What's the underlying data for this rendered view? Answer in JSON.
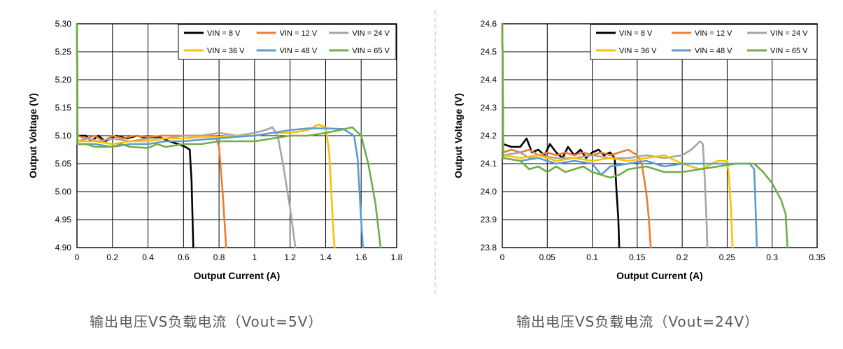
{
  "captions": [
    "输出电压VS负载电流（Vout=5V）",
    "输出电压VS负载电流（Vout=24V）"
  ],
  "chart_data": [
    {
      "type": "line",
      "title": "",
      "xlabel": "Output Current (A)",
      "ylabel": "Output Voltage (V)",
      "xlim": [
        0,
        1.8
      ],
      "ylim": [
        4.9,
        5.3
      ],
      "xticks": [
        "0",
        "0.2",
        "0.4",
        "0.6",
        "0.8",
        "1",
        "1.2",
        "1.4",
        "1.6",
        "1.8"
      ],
      "yticks": [
        "4.90",
        "4.95",
        "5.00",
        "5.05",
        "5.10",
        "5.15",
        "5.20",
        "5.25",
        "5.30"
      ],
      "grid": true,
      "legend_position": "top-right",
      "series": [
        {
          "name": "VIN = 8 V",
          "color": "#000000",
          "points": [
            [
              0,
              5.3
            ],
            [
              0.003,
              5.1
            ],
            [
              0.05,
              5.1
            ],
            [
              0.08,
              5.09
            ],
            [
              0.12,
              5.1
            ],
            [
              0.16,
              5.09
            ],
            [
              0.22,
              5.1
            ],
            [
              0.28,
              5.095
            ],
            [
              0.34,
              5.1
            ],
            [
              0.4,
              5.095
            ],
            [
              0.46,
              5.098
            ],
            [
              0.52,
              5.09
            ],
            [
              0.57,
              5.085
            ],
            [
              0.61,
              5.08
            ],
            [
              0.635,
              5.075
            ],
            [
              0.645,
              5.02
            ],
            [
              0.655,
              4.9
            ]
          ]
        },
        {
          "name": "VIN = 12 V",
          "color": "#ed7d31",
          "points": [
            [
              0,
              5.3
            ],
            [
              0.003,
              5.1
            ],
            [
              0.05,
              5.095
            ],
            [
              0.1,
              5.1
            ],
            [
              0.15,
              5.09
            ],
            [
              0.2,
              5.1
            ],
            [
              0.26,
              5.095
            ],
            [
              0.32,
              5.1
            ],
            [
              0.4,
              5.098
            ],
            [
              0.48,
              5.1
            ],
            [
              0.56,
              5.1
            ],
            [
              0.64,
              5.1
            ],
            [
              0.72,
              5.1
            ],
            [
              0.78,
              5.1
            ],
            [
              0.8,
              5.08
            ],
            [
              0.82,
              5.0
            ],
            [
              0.84,
              4.9
            ]
          ]
        },
        {
          "name": "VIN = 24 V",
          "color": "#a5a5a5",
          "points": [
            [
              0,
              5.3
            ],
            [
              0.003,
              5.09
            ],
            [
              0.06,
              5.095
            ],
            [
              0.12,
              5.09
            ],
            [
              0.2,
              5.095
            ],
            [
              0.3,
              5.09
            ],
            [
              0.4,
              5.095
            ],
            [
              0.5,
              5.095
            ],
            [
              0.6,
              5.1
            ],
            [
              0.7,
              5.1
            ],
            [
              0.8,
              5.105
            ],
            [
              0.9,
              5.1
            ],
            [
              1.0,
              5.105
            ],
            [
              1.06,
              5.11
            ],
            [
              1.1,
              5.115
            ],
            [
              1.13,
              5.1
            ],
            [
              1.16,
              5.05
            ],
            [
              1.2,
              4.97
            ],
            [
              1.23,
              4.9
            ]
          ]
        },
        {
          "name": "VIN = 36 V",
          "color": "#ffc000",
          "points": [
            [
              0,
              5.3
            ],
            [
              0.003,
              5.09
            ],
            [
              0.1,
              5.09
            ],
            [
              0.2,
              5.085
            ],
            [
              0.3,
              5.09
            ],
            [
              0.4,
              5.09
            ],
            [
              0.5,
              5.095
            ],
            [
              0.6,
              5.095
            ],
            [
              0.7,
              5.098
            ],
            [
              0.8,
              5.098
            ],
            [
              0.9,
              5.1
            ],
            [
              1.0,
              5.1
            ],
            [
              1.1,
              5.105
            ],
            [
              1.2,
              5.105
            ],
            [
              1.3,
              5.11
            ],
            [
              1.36,
              5.12
            ],
            [
              1.4,
              5.115
            ],
            [
              1.42,
              5.07
            ],
            [
              1.44,
              4.95
            ],
            [
              1.45,
              4.9
            ]
          ]
        },
        {
          "name": "VIN = 48 V",
          "color": "#5b9bd5",
          "points": [
            [
              0,
              5.3
            ],
            [
              0.003,
              5.085
            ],
            [
              0.1,
              5.085
            ],
            [
              0.2,
              5.08
            ],
            [
              0.3,
              5.085
            ],
            [
              0.4,
              5.085
            ],
            [
              0.5,
              5.09
            ],
            [
              0.6,
              5.09
            ],
            [
              0.7,
              5.093
            ],
            [
              0.8,
              5.095
            ],
            [
              0.9,
              5.098
            ],
            [
              1.0,
              5.1
            ],
            [
              1.1,
              5.105
            ],
            [
              1.2,
              5.11
            ],
            [
              1.3,
              5.113
            ],
            [
              1.4,
              5.113
            ],
            [
              1.5,
              5.112
            ],
            [
              1.56,
              5.1
            ],
            [
              1.58,
              5.06
            ],
            [
              1.6,
              4.95
            ],
            [
              1.61,
              4.9
            ]
          ]
        },
        {
          "name": "VIN = 65 V",
          "color": "#70ad47",
          "points": [
            [
              0,
              5.3
            ],
            [
              0.003,
              5.085
            ],
            [
              0.05,
              5.085
            ],
            [
              0.1,
              5.08
            ],
            [
              0.2,
              5.08
            ],
            [
              0.25,
              5.085
            ],
            [
              0.3,
              5.08
            ],
            [
              0.4,
              5.078
            ],
            [
              0.45,
              5.085
            ],
            [
              0.5,
              5.08
            ],
            [
              0.6,
              5.085
            ],
            [
              0.7,
              5.085
            ],
            [
              0.8,
              5.09
            ],
            [
              0.9,
              5.09
            ],
            [
              1.0,
              5.09
            ],
            [
              1.1,
              5.095
            ],
            [
              1.2,
              5.1
            ],
            [
              1.3,
              5.1
            ],
            [
              1.4,
              5.105
            ],
            [
              1.48,
              5.11
            ],
            [
              1.55,
              5.115
            ],
            [
              1.6,
              5.1
            ],
            [
              1.64,
              5.05
            ],
            [
              1.68,
              4.98
            ],
            [
              1.71,
              4.9
            ]
          ]
        }
      ]
    },
    {
      "type": "line",
      "title": "",
      "xlabel": "Output Current (A)",
      "ylabel": "Output Voltage (V)",
      "xlim": [
        0,
        0.35
      ],
      "ylim": [
        23.8,
        24.6
      ],
      "xticks": [
        "0",
        "0.05",
        "0.1",
        "0.15",
        "0.2",
        "0.25",
        "0.3",
        "0.35"
      ],
      "yticks": [
        "23.8",
        "23.9",
        "24.0",
        "24.1",
        "24.2",
        "24.3",
        "24.4",
        "24.5",
        "24.6"
      ],
      "grid": true,
      "legend_position": "top-right",
      "series": [
        {
          "name": "VIN = 8 V",
          "color": "#000000",
          "points": [
            [
              0,
              24.6
            ],
            [
              0.001,
              24.17
            ],
            [
              0.01,
              24.16
            ],
            [
              0.02,
              24.16
            ],
            [
              0.027,
              24.19
            ],
            [
              0.033,
              24.14
            ],
            [
              0.04,
              24.15
            ],
            [
              0.047,
              24.13
            ],
            [
              0.053,
              24.17
            ],
            [
              0.06,
              24.14
            ],
            [
              0.067,
              24.12
            ],
            [
              0.073,
              24.16
            ],
            [
              0.08,
              24.13
            ],
            [
              0.087,
              24.15
            ],
            [
              0.093,
              24.12
            ],
            [
              0.1,
              24.14
            ],
            [
              0.107,
              24.15
            ],
            [
              0.113,
              24.13
            ],
            [
              0.12,
              24.14
            ],
            [
              0.125,
              24.12
            ],
            [
              0.127,
              24.0
            ],
            [
              0.129,
              23.9
            ],
            [
              0.13,
              23.8
            ]
          ]
        },
        {
          "name": "VIN = 12 V",
          "color": "#ed7d31",
          "points": [
            [
              0,
              24.6
            ],
            [
              0.001,
              24.14
            ],
            [
              0.01,
              24.15
            ],
            [
              0.02,
              24.14
            ],
            [
              0.03,
              24.15
            ],
            [
              0.04,
              24.13
            ],
            [
              0.05,
              24.14
            ],
            [
              0.06,
              24.13
            ],
            [
              0.07,
              24.14
            ],
            [
              0.08,
              24.13
            ],
            [
              0.09,
              24.14
            ],
            [
              0.1,
              24.13
            ],
            [
              0.11,
              24.14
            ],
            [
              0.12,
              24.13
            ],
            [
              0.13,
              24.14
            ],
            [
              0.14,
              24.15
            ],
            [
              0.15,
              24.13
            ],
            [
              0.155,
              24.1
            ],
            [
              0.16,
              24.0
            ],
            [
              0.163,
              23.9
            ],
            [
              0.165,
              23.8
            ]
          ]
        },
        {
          "name": "VIN = 24 V",
          "color": "#a5a5a5",
          "points": [
            [
              0,
              24.6
            ],
            [
              0.001,
              24.13
            ],
            [
              0.02,
              24.14
            ],
            [
              0.03,
              24.12
            ],
            [
              0.04,
              24.13
            ],
            [
              0.06,
              24.12
            ],
            [
              0.08,
              24.12
            ],
            [
              0.1,
              24.13
            ],
            [
              0.12,
              24.12
            ],
            [
              0.14,
              24.12
            ],
            [
              0.16,
              24.13
            ],
            [
              0.18,
              24.12
            ],
            [
              0.2,
              24.13
            ],
            [
              0.21,
              24.15
            ],
            [
              0.22,
              24.18
            ],
            [
              0.223,
              24.17
            ],
            [
              0.225,
              24.05
            ],
            [
              0.227,
              23.9
            ],
            [
              0.228,
              23.8
            ]
          ]
        },
        {
          "name": "VIN = 36 V",
          "color": "#ffc000",
          "points": [
            [
              0,
              24.6
            ],
            [
              0.001,
              24.13
            ],
            [
              0.02,
              24.12
            ],
            [
              0.04,
              24.13
            ],
            [
              0.06,
              24.11
            ],
            [
              0.08,
              24.12
            ],
            [
              0.1,
              24.11
            ],
            [
              0.12,
              24.12
            ],
            [
              0.14,
              24.11
            ],
            [
              0.16,
              24.12
            ],
            [
              0.18,
              24.13
            ],
            [
              0.2,
              24.1
            ],
            [
              0.22,
              24.08
            ],
            [
              0.24,
              24.11
            ],
            [
              0.25,
              24.11
            ],
            [
              0.252,
              24.05
            ],
            [
              0.254,
              23.95
            ],
            [
              0.256,
              23.8
            ]
          ]
        },
        {
          "name": "VIN = 48 V",
          "color": "#5b9bd5",
          "points": [
            [
              0,
              24.6
            ],
            [
              0.001,
              24.12
            ],
            [
              0.02,
              24.11
            ],
            [
              0.04,
              24.12
            ],
            [
              0.06,
              24.1
            ],
            [
              0.08,
              24.11
            ],
            [
              0.1,
              24.1
            ],
            [
              0.11,
              24.06
            ],
            [
              0.12,
              24.09
            ],
            [
              0.14,
              24.1
            ],
            [
              0.16,
              24.11
            ],
            [
              0.18,
              24.09
            ],
            [
              0.2,
              24.1
            ],
            [
              0.22,
              24.1
            ],
            [
              0.24,
              24.1
            ],
            [
              0.26,
              24.1
            ],
            [
              0.275,
              24.1
            ],
            [
              0.28,
              24.08
            ],
            [
              0.281,
              24.0
            ],
            [
              0.282,
              23.9
            ],
            [
              0.283,
              23.8
            ]
          ]
        },
        {
          "name": "VIN = 65 V",
          "color": "#70ad47",
          "points": [
            [
              0,
              24.6
            ],
            [
              0.001,
              24.12
            ],
            [
              0.02,
              24.11
            ],
            [
              0.03,
              24.08
            ],
            [
              0.04,
              24.09
            ],
            [
              0.05,
              24.07
            ],
            [
              0.06,
              24.09
            ],
            [
              0.07,
              24.07
            ],
            [
              0.08,
              24.08
            ],
            [
              0.09,
              24.09
            ],
            [
              0.1,
              24.07
            ],
            [
              0.11,
              24.06
            ],
            [
              0.12,
              24.05
            ],
            [
              0.13,
              24.06
            ],
            [
              0.14,
              24.08
            ],
            [
              0.16,
              24.09
            ],
            [
              0.18,
              24.07
            ],
            [
              0.2,
              24.07
            ],
            [
              0.22,
              24.08
            ],
            [
              0.24,
              24.09
            ],
            [
              0.26,
              24.1
            ],
            [
              0.28,
              24.1
            ],
            [
              0.29,
              24.07
            ],
            [
              0.3,
              24.03
            ],
            [
              0.31,
              23.97
            ],
            [
              0.315,
              23.92
            ],
            [
              0.317,
              23.8
            ]
          ]
        }
      ]
    }
  ]
}
